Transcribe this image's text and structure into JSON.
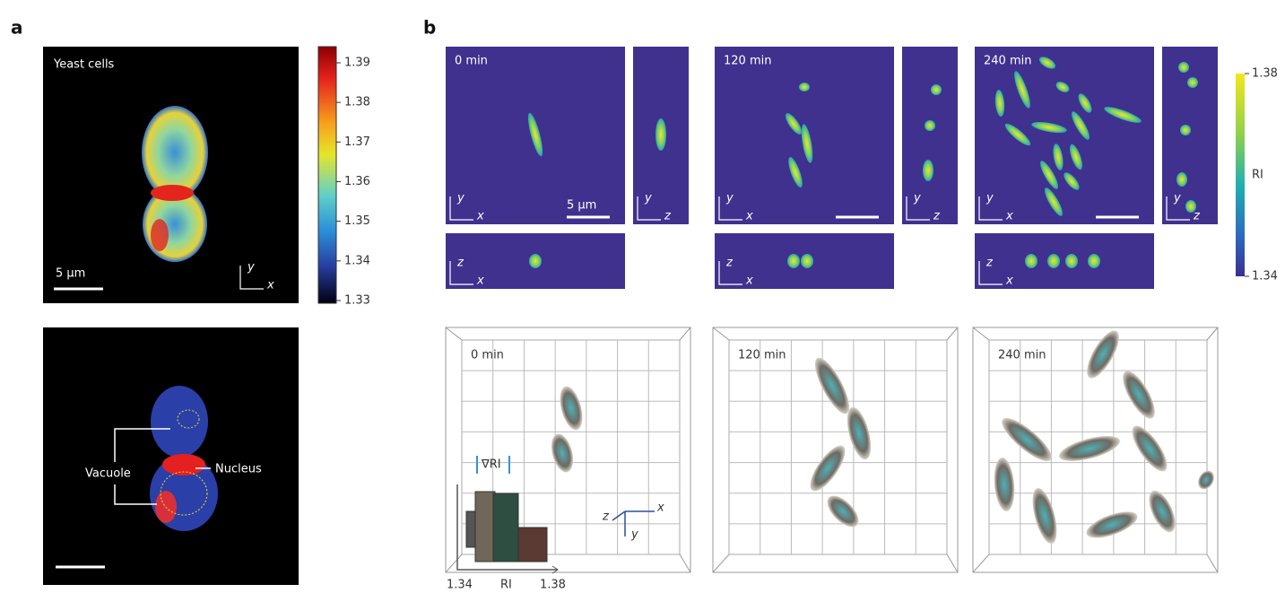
{
  "panel_a": {
    "label": "a",
    "title": "Yeast cells",
    "scale_bar": "5 µm",
    "axis_y": "y",
    "axis_x": "x",
    "colorbar": {
      "ticks": [
        1.39,
        1.38,
        1.37,
        1.36,
        1.35,
        1.34,
        1.33
      ]
    },
    "annotations": {
      "vacuole": "Vacuole",
      "nucleus": "Nucleus"
    }
  },
  "panel_b": {
    "label": "b",
    "timepoints": [
      "0 min",
      "120 min",
      "240 min"
    ],
    "scale_bar": "5 µm",
    "axis_x": "x",
    "axis_y": "y",
    "axis_z": "z",
    "colorbar": {
      "max": 1.38,
      "label": "RI",
      "min": 1.34
    },
    "inset": {
      "title": "∇RI",
      "x_min": 1.34,
      "x_label": "RI",
      "x_max": 1.38
    }
  }
}
